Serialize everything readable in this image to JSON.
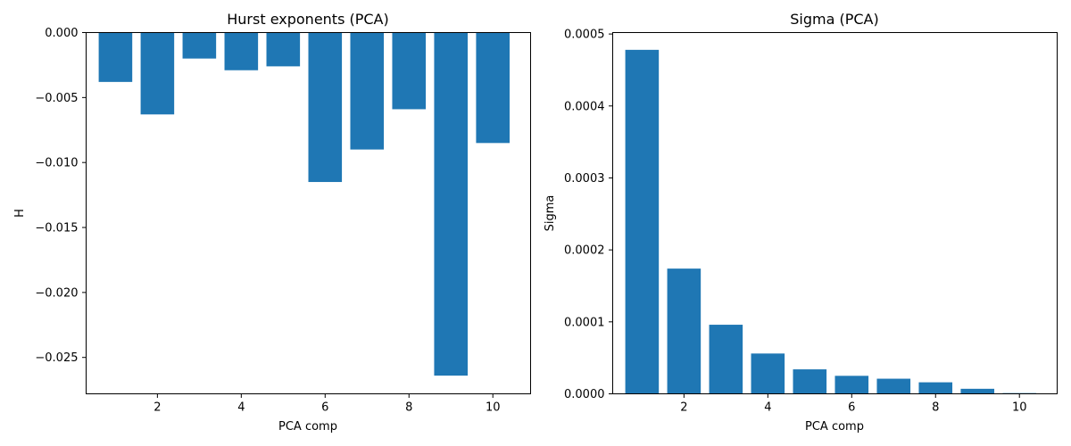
{
  "chart_data": [
    {
      "type": "bar",
      "title": "Hurst exponents (PCA)",
      "xlabel": "PCA comp",
      "ylabel": "H",
      "color": "#1f77b4",
      "x": [
        1,
        2,
        3,
        4,
        5,
        6,
        7,
        8,
        9,
        10
      ],
      "values": [
        -0.0038,
        -0.0063,
        -0.002,
        -0.0029,
        -0.0026,
        -0.0115,
        -0.009,
        -0.0059,
        -0.0264,
        -0.0085
      ],
      "xlim": [
        0.3,
        10.9
      ],
      "ylim": [
        -0.0278,
        0.0
      ],
      "xticks": [
        2,
        4,
        6,
        8,
        10
      ],
      "xtick_labels": [
        "2",
        "4",
        "6",
        "8",
        "10"
      ],
      "yticks": [
        0.0,
        -0.005,
        -0.01,
        -0.015,
        -0.02,
        -0.025
      ],
      "ytick_labels": [
        "0.000",
        "−0.005",
        "−0.010",
        "−0.015",
        "−0.020",
        "−0.025"
      ],
      "grid": false
    },
    {
      "type": "bar",
      "title": "Sigma (PCA)",
      "xlabel": "PCA comp",
      "ylabel": "Sigma",
      "color": "#1f77b4",
      "x": [
        1,
        2,
        3,
        4,
        5,
        6,
        7,
        8,
        9,
        10
      ],
      "values": [
        0.000478,
        0.000174,
        9.6e-05,
        5.6e-05,
        3.4e-05,
        2.5e-05,
        2.1e-05,
        1.6e-05,
        7e-06,
        1e-06
      ],
      "xlim": [
        0.3,
        10.9
      ],
      "ylim": [
        0.0,
        0.000502
      ],
      "xticks": [
        2,
        4,
        6,
        8,
        10
      ],
      "xtick_labels": [
        "2",
        "4",
        "6",
        "8",
        "10"
      ],
      "yticks": [
        0.0,
        0.0001,
        0.0002,
        0.0003,
        0.0004,
        0.0005
      ],
      "ytick_labels": [
        "0.0000",
        "0.0001",
        "0.0002",
        "0.0003",
        "0.0004",
        "0.0005"
      ],
      "grid": false
    }
  ]
}
